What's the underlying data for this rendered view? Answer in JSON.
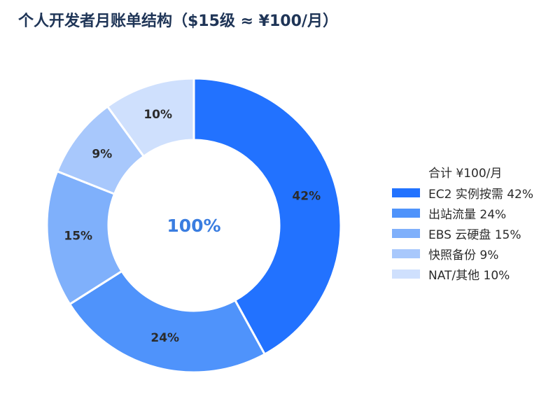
{
  "chart_data": {
    "type": "pie",
    "title": "个人开发者月账单结构（$15级 ≈ ¥100/月）",
    "center_text": "100%",
    "legend_title": "合计 ¥100/月",
    "legend_position": "right",
    "categories": [
      "EC2 实例按需",
      "出站流量",
      "EBS 云硬盘",
      "快照备份",
      "NAT/其他"
    ],
    "values": [
      42,
      24,
      15,
      9,
      10
    ],
    "value_labels": [
      "42%",
      "24%",
      "15%",
      "9%",
      "10%"
    ],
    "legend_labels": [
      "EC2 实例按需  42%",
      "出站流量  24%",
      "EBS 云硬盘  15%",
      "快照备份  9%",
      "NAT/其他  10%"
    ],
    "colors": [
      "#2272ff",
      "#4f93fb",
      "#7fb0fb",
      "#a8c8fc",
      "#cfe0fd"
    ],
    "center_text_color": "#3a7de0"
  }
}
